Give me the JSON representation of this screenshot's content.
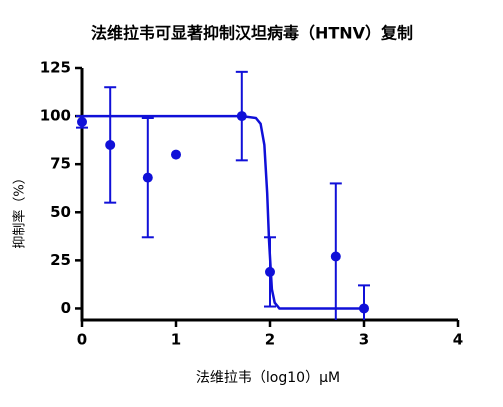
{
  "chart_data": {
    "type": "scatter",
    "title": "法维拉韦可显著抑制汉坦病毒（HTNV）复制",
    "xlabel": "法维拉韦（log10）μM",
    "ylabel": "抑制率（%）",
    "color": "#1010d8",
    "x": [
      0,
      0.3,
      0.7,
      1.0,
      1.7,
      2.0,
      2.7,
      3.0
    ],
    "values": [
      97,
      85,
      68,
      80,
      100,
      19,
      27,
      0
    ],
    "errors": [
      3,
      30,
      31,
      null,
      23,
      18,
      38,
      12
    ],
    "fit": {
      "x": [
        0,
        1.7,
        1.85,
        1.9,
        1.94,
        1.97,
        1.99,
        2.02,
        2.05,
        2.1,
        3.0
      ],
      "values": [
        100,
        100,
        99,
        96,
        85,
        60,
        35,
        10,
        3,
        0,
        0
      ]
    },
    "xlim": [
      0,
      4
    ],
    "xticks": [
      0,
      1,
      2,
      3,
      4
    ],
    "ylim": [
      -6,
      125
    ],
    "yticks": [
      0,
      25,
      50,
      75,
      100,
      125
    ]
  }
}
